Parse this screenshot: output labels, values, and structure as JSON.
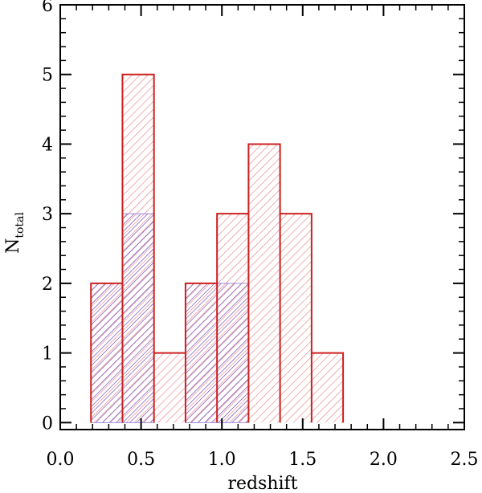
{
  "chart_data": {
    "type": "bar",
    "xlabel": "redshift",
    "ylabel_main": "N",
    "ylabel_sub": "total",
    "xlim": [
      0.0,
      2.5
    ],
    "ylim": [
      -0.1,
      6.0
    ],
    "xticks": [
      0.0,
      0.5,
      1.0,
      1.5,
      2.0,
      2.5
    ],
    "xtick_labels": [
      "0.0",
      "0.5",
      "1.0",
      "1.5",
      "2.0",
      "2.5"
    ],
    "yticks": [
      0,
      1,
      2,
      3,
      4,
      5,
      6
    ],
    "ytick_labels": [
      "0",
      "1",
      "2",
      "3",
      "4",
      "5",
      "6"
    ],
    "bin_edges": [
      0.19,
      0.385,
      0.58,
      0.775,
      0.97,
      1.165,
      1.36,
      1.555,
      1.75
    ],
    "series": [
      {
        "name": "",
        "color": "#cc2020",
        "values": [
          2,
          5,
          1,
          2,
          3,
          4,
          3,
          1
        ]
      },
      {
        "name": "",
        "color": "#4a2aa8",
        "values": [
          2,
          3,
          0,
          2,
          2,
          0,
          0,
          0
        ]
      }
    ],
    "grid": false
  }
}
